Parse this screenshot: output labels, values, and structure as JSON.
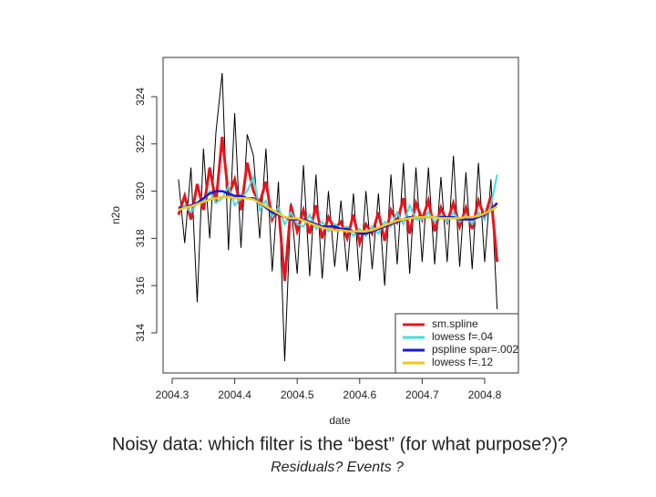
{
  "chart_data": {
    "type": "line",
    "title": "Noisy data:  which filter is the “best” (for what purpose?)?",
    "subtitle": "Residuals?  Events ?",
    "x_label": "date",
    "y_label": "n2o",
    "x": [
      2004.31,
      2004.32,
      2004.33,
      2004.34,
      2004.35,
      2004.36,
      2004.37,
      2004.38,
      2004.39,
      2004.4,
      2004.41,
      2004.42,
      2004.43,
      2004.44,
      2004.45,
      2004.46,
      2004.47,
      2004.48,
      2004.49,
      2004.5,
      2004.51,
      2004.52,
      2004.53,
      2004.54,
      2004.55,
      2004.56,
      2004.57,
      2004.58,
      2004.59,
      2004.6,
      2004.61,
      2004.62,
      2004.63,
      2004.64,
      2004.65,
      2004.66,
      2004.67,
      2004.68,
      2004.69,
      2004.7,
      2004.71,
      2004.72,
      2004.73,
      2004.74,
      2004.75,
      2004.76,
      2004.77,
      2004.78,
      2004.79,
      2004.8,
      2004.81,
      2004.82
    ],
    "values": [
      320.5,
      317.8,
      321.0,
      315.3,
      321.8,
      318.0,
      322.5,
      325.0,
      317.5,
      323.3,
      317.6,
      322.4,
      321.5,
      318.0,
      321.8,
      316.6,
      320.4,
      312.8,
      319.5,
      316.5,
      321.1,
      316.4,
      320.7,
      316.3,
      320.0,
      316.8,
      319.6,
      316.6,
      319.9,
      316.2,
      320.0,
      316.7,
      319.9,
      316.0,
      320.7,
      316.9,
      321.2,
      316.5,
      321.0,
      317.0,
      321.0,
      316.9,
      320.6,
      317.0,
      321.5,
      316.8,
      320.8,
      316.7,
      321.2,
      317.0,
      320.5,
      315.0
    ],
    "color": "#000000",
    "series": [
      {
        "name": "sm.spline",
        "color": "#e8141c",
        "values": [
          319.0,
          319.8,
          318.8,
          320.3,
          319.2,
          321.0,
          319.5,
          322.3,
          319.8,
          320.5,
          319.2,
          321.2,
          320.0,
          319.5,
          320.4,
          318.8,
          319.3,
          316.2,
          319.4,
          318.3,
          319.2,
          318.2,
          319.4,
          318.0,
          318.9,
          318.4,
          318.7,
          318.0,
          319.0,
          317.8,
          318.6,
          318.2,
          319.1,
          317.9,
          319.2,
          318.7,
          319.7,
          318.2,
          319.5,
          318.8,
          319.6,
          318.3,
          319.3,
          318.7,
          319.5,
          318.5,
          319.3,
          318.4,
          319.6,
          318.9,
          319.8,
          317.0
        ]
      },
      {
        "name": "lowess f=.04",
        "color": "#3fe0e0",
        "values": [
          319.2,
          319.4,
          319.1,
          319.5,
          319.6,
          320.0,
          319.5,
          319.7,
          320.2,
          319.4,
          319.7,
          320.0,
          320.6,
          319.2,
          319.6,
          318.9,
          319.3,
          318.6,
          319.1,
          318.6,
          318.5,
          319.0,
          318.4,
          318.7,
          318.3,
          318.6,
          318.4,
          318.5,
          318.1,
          318.4,
          318.1,
          318.5,
          318.2,
          318.7,
          318.5,
          319.1,
          318.6,
          319.4,
          318.8,
          318.8,
          319.1,
          318.7,
          319.0,
          318.7,
          319.1,
          318.7,
          319.0,
          318.6,
          319.1,
          318.8,
          319.4,
          320.7
        ]
      },
      {
        "name": "pspline spar=.002",
        "color": "#1a1ad0",
        "values": [
          319.3,
          319.3,
          319.4,
          319.5,
          319.7,
          319.9,
          320.0,
          320.0,
          319.9,
          319.8,
          319.8,
          319.7,
          319.7,
          319.5,
          319.3,
          319.1,
          319.0,
          318.9,
          318.8,
          318.8,
          318.8,
          318.7,
          318.6,
          318.5,
          318.5,
          318.5,
          318.4,
          318.4,
          318.3,
          318.2,
          318.2,
          318.3,
          318.4,
          318.5,
          318.6,
          318.7,
          318.8,
          318.9,
          318.9,
          318.9,
          318.9,
          318.9,
          318.9,
          318.9,
          318.9,
          318.8,
          318.8,
          318.8,
          318.9,
          319.0,
          319.2,
          319.5
        ]
      },
      {
        "name": "lowess f=.12",
        "color": "#f0c81e",
        "values": [
          319.2,
          319.3,
          319.35,
          319.45,
          319.55,
          319.65,
          319.7,
          319.75,
          319.75,
          319.7,
          319.7,
          319.7,
          319.65,
          319.5,
          319.35,
          319.2,
          319.05,
          318.9,
          318.85,
          318.85,
          318.75,
          318.65,
          318.55,
          318.45,
          318.4,
          318.35,
          318.35,
          318.3,
          318.3,
          318.3,
          318.3,
          318.35,
          318.45,
          318.55,
          318.65,
          318.75,
          318.8,
          318.85,
          318.9,
          318.9,
          318.9,
          318.9,
          318.85,
          318.85,
          318.85,
          318.85,
          318.9,
          318.9,
          318.95,
          319.05,
          319.2,
          319.35
        ]
      }
    ],
    "xlim": [
      2004.2854,
      2004.854
    ],
    "ylim": [
      312.3,
      325.66
    ],
    "xticks": [
      2004.3,
      2004.4,
      2004.5,
      2004.6,
      2004.7,
      2004.8
    ],
    "yticks": [
      314,
      316,
      318,
      320,
      322,
      324
    ],
    "legend": "bottom-right"
  }
}
